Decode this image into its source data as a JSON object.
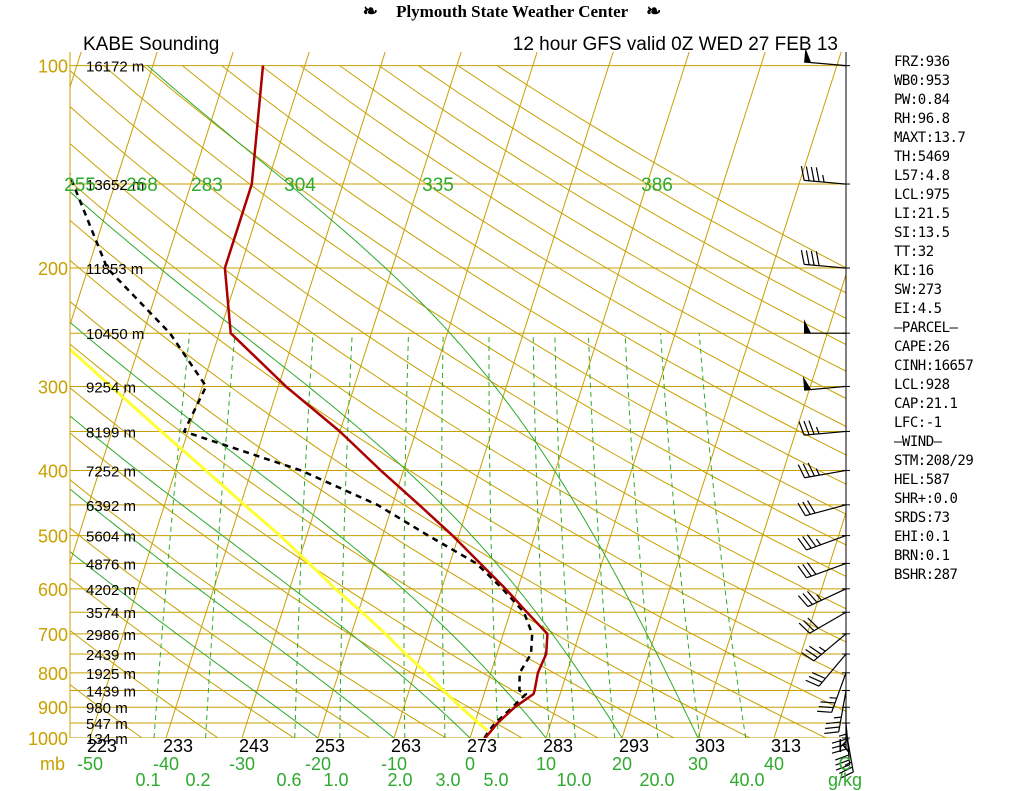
{
  "header": {
    "title": "Plymouth State Weather Center"
  },
  "colors": {
    "isobar": "#c8a000",
    "isotherm": "#c8a000",
    "dry_adiabat": "#c8a000",
    "moist_adiabat": "#2eaa2e",
    "mixing_ratio": "#2eaa2e",
    "temperature": "#aa0000",
    "dewpoint": "#000000",
    "parcel": "#ffff33",
    "pressure_label": "#c8a000",
    "theta_label": "#2eaa2e",
    "wind_barb": "#000000"
  },
  "chart_data": {
    "type": "skew-t",
    "station_label": "KABE Sounding",
    "model_label": "12 hour GFS valid 0Z WED 27 FEB 13",
    "pressure_axis": {
      "unit": "mb",
      "ticks": [
        100,
        200,
        300,
        400,
        500,
        600,
        700,
        800,
        900,
        1000
      ]
    },
    "temperature_axis": {
      "unit": "C",
      "ticks": [
        -50,
        -40,
        -30,
        -20,
        -10,
        0,
        10,
        20,
        30,
        40
      ]
    },
    "kelvin_axis": {
      "unit": "K",
      "ticks": [
        223,
        233,
        243,
        253,
        263,
        273,
        283,
        293,
        303,
        313
      ]
    },
    "mixing_ratio_axis": {
      "unit": "g/kg",
      "ticks": [
        "0.1",
        "0.2",
        "0.6",
        "1.0",
        "2.0",
        "3.0",
        "5.0",
        "10.0",
        "20.0",
        "40.0"
      ]
    },
    "theta_labels": [
      "255",
      "268",
      "283",
      "304",
      "335",
      "386"
    ],
    "height_labels": [
      {
        "p": 100,
        "h": "16172 m"
      },
      {
        "p": 150,
        "h": "13652 m"
      },
      {
        "p": 200,
        "h": "11853 m"
      },
      {
        "p": 250,
        "h": "10450 m"
      },
      {
        "p": 300,
        "h": "9254 m"
      },
      {
        "p": 350,
        "h": "8199 m"
      },
      {
        "p": 400,
        "h": "7252 m"
      },
      {
        "p": 450,
        "h": "6392 m"
      },
      {
        "p": 500,
        "h": "5604 m"
      },
      {
        "p": 550,
        "h": "4876 m"
      },
      {
        "p": 600,
        "h": "4202 m"
      },
      {
        "p": 650,
        "h": "3574 m"
      },
      {
        "p": 700,
        "h": "2986 m"
      },
      {
        "p": 750,
        "h": "2439 m"
      },
      {
        "p": 800,
        "h": "1925 m"
      },
      {
        "p": 850,
        "h": "1439 m"
      },
      {
        "p": 900,
        "h": "980 m"
      },
      {
        "p": 950,
        "h": "547 m"
      },
      {
        "p": 1000,
        "h": "134 m"
      }
    ],
    "temperature_profile": [
      {
        "p": 1000,
        "t": 2.0
      },
      {
        "p": 975,
        "t": 2.5
      },
      {
        "p": 950,
        "t": 3.0
      },
      {
        "p": 900,
        "t": 4.6
      },
      {
        "p": 860,
        "t": 6.5
      },
      {
        "p": 850,
        "t": 6.5
      },
      {
        "p": 800,
        "t": 6.2
      },
      {
        "p": 750,
        "t": 6.5
      },
      {
        "p": 700,
        "t": 5.8
      },
      {
        "p": 650,
        "t": 2.2
      },
      {
        "p": 600,
        "t": -1.6
      },
      {
        "p": 550,
        "t": -6.0
      },
      {
        "p": 500,
        "t": -10.8
      },
      {
        "p": 450,
        "t": -16.5
      },
      {
        "p": 400,
        "t": -23.0
      },
      {
        "p": 350,
        "t": -30.0
      },
      {
        "p": 300,
        "t": -39.0
      },
      {
        "p": 250,
        "t": -48.5
      },
      {
        "p": 200,
        "t": -52.0
      },
      {
        "p": 150,
        "t": -52.0
      },
      {
        "p": 100,
        "t": -55.5
      }
    ],
    "dewpoint_profile": [
      {
        "p": 1000,
        "t": 1.9
      },
      {
        "p": 975,
        "t": 2.2
      },
      {
        "p": 950,
        "t": 2.7
      },
      {
        "p": 900,
        "t": 4.3
      },
      {
        "p": 860,
        "t": 5.5
      },
      {
        "p": 850,
        "t": 4.5
      },
      {
        "p": 800,
        "t": 3.8
      },
      {
        "p": 750,
        "t": 4.5
      },
      {
        "p": 700,
        "t": 3.8
      },
      {
        "p": 650,
        "t": 1.8
      },
      {
        "p": 600,
        "t": -2.0
      },
      {
        "p": 550,
        "t": -6.5
      },
      {
        "p": 500,
        "t": -14.0
      },
      {
        "p": 450,
        "t": -22.0
      },
      {
        "p": 400,
        "t": -33.5
      },
      {
        "p": 350,
        "t": -50.5
      },
      {
        "p": 300,
        "t": -49.5
      },
      {
        "p": 250,
        "t": -56.5
      },
      {
        "p": 200,
        "t": -67.5
      },
      {
        "p": 150,
        "t": -75.5
      },
      {
        "p": 100,
        "t": -86.0
      }
    ],
    "parcel_profile": [
      {
        "p": 975,
        "t": 2.0
      },
      {
        "p": 950,
        "t": 0.5
      },
      {
        "p": 900,
        "t": -2.5
      },
      {
        "p": 850,
        "t": -5.5
      },
      {
        "p": 800,
        "t": -8.5
      },
      {
        "p": 750,
        "t": -12.0
      },
      {
        "p": 700,
        "t": -15.5
      },
      {
        "p": 650,
        "t": -19.5
      },
      {
        "p": 600,
        "t": -24.0
      },
      {
        "p": 550,
        "t": -28.5
      },
      {
        "p": 500,
        "t": -33.5
      },
      {
        "p": 450,
        "t": -39.5
      },
      {
        "p": 400,
        "t": -46.0
      },
      {
        "p": 350,
        "t": -53.5
      },
      {
        "p": 300,
        "t": -62.0
      },
      {
        "p": 250,
        "t": -72.0
      },
      {
        "p": 200,
        "t": -84.0
      },
      {
        "p": 150,
        "t": -99.0
      },
      {
        "p": 115,
        "t": -110.0
      }
    ],
    "wind_barbs": [
      {
        "p": 100,
        "dir": 275,
        "spd": 50
      },
      {
        "p": 150,
        "dir": 275,
        "spd": 45
      },
      {
        "p": 200,
        "dir": 275,
        "spd": 40
      },
      {
        "p": 250,
        "dir": 270,
        "spd": 50
      },
      {
        "p": 300,
        "dir": 265,
        "spd": 50
      },
      {
        "p": 350,
        "dir": 265,
        "spd": 35
      },
      {
        "p": 400,
        "dir": 260,
        "spd": 35
      },
      {
        "p": 450,
        "dir": 255,
        "spd": 30
      },
      {
        "p": 500,
        "dir": 250,
        "spd": 35
      },
      {
        "p": 550,
        "dir": 250,
        "spd": 30
      },
      {
        "p": 600,
        "dir": 245,
        "spd": 35
      },
      {
        "p": 650,
        "dir": 240,
        "spd": 30
      },
      {
        "p": 700,
        "dir": 230,
        "spd": 35
      },
      {
        "p": 750,
        "dir": 220,
        "spd": 30
      },
      {
        "p": 800,
        "dir": 200,
        "spd": 35
      },
      {
        "p": 850,
        "dir": 190,
        "spd": 35
      },
      {
        "p": 900,
        "dir": 180,
        "spd": 35
      },
      {
        "p": 950,
        "dir": 175,
        "spd": 30
      },
      {
        "p": 975,
        "dir": 170,
        "spd": 25
      }
    ]
  },
  "indices": [
    "FRZ:936",
    "WB0:953",
    "PW:0.84",
    "RH:96.8",
    "MAXT:13.7",
    "TH:5469",
    "L57:4.8",
    "LCL:975",
    "LI:21.5",
    "SI:13.5",
    "TT:32",
    "KI:16",
    "SW:273",
    "EI:4.5",
    "–PARCEL–",
    "CAPE:26",
    "CINH:16657",
    "LCL:928",
    "CAP:21.1",
    "LFC:-1",
    "–WIND–",
    "STM:208/29",
    "HEL:587",
    "SHR+:0.0",
    "SRDS:73",
    "EHI:0.1",
    "BRN:0.1",
    "BSHR:287"
  ]
}
